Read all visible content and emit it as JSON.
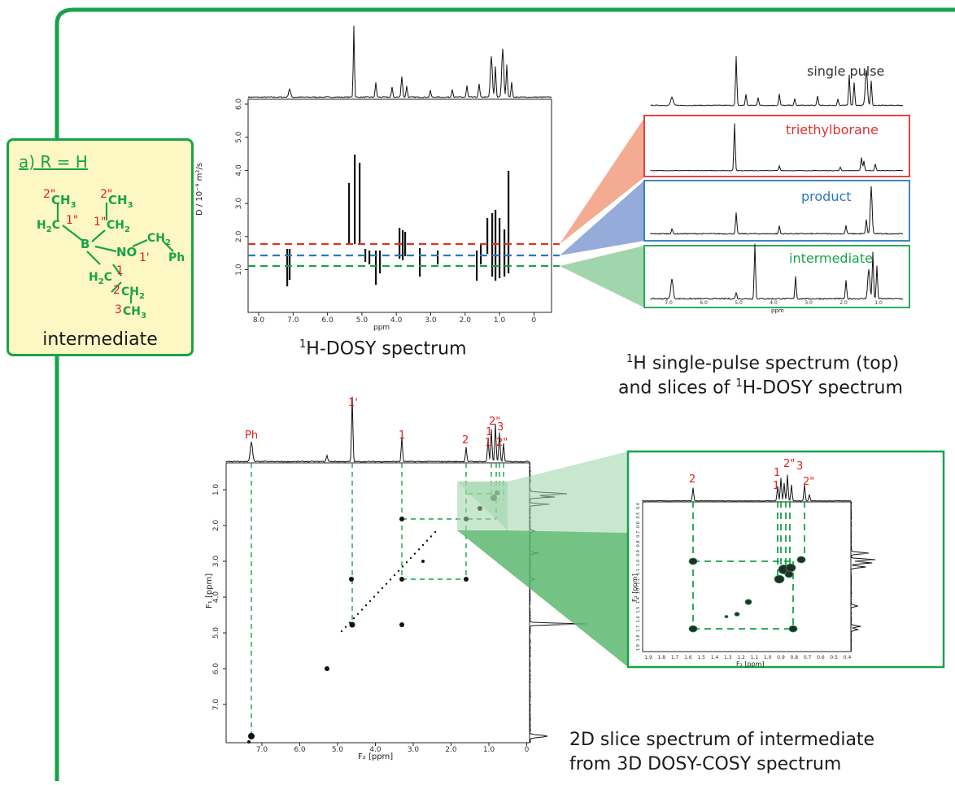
{
  "structure": {
    "title": "a) R = H",
    "footer": "intermediate",
    "atoms": {
      "ch3_top_left": "CH",
      "ch3_top_right": "CH",
      "h2c_left": "H",
      "ch2_right": "CH",
      "b": "B",
      "no": "NO",
      "ch2_benzyl": "CH",
      "ph": "Ph",
      "h2c_lower": "H",
      "ch2_lower": "CH",
      "ch3_lower": "CH"
    },
    "numbers": {
      "n2pp_left": "2\"",
      "n2pp_right": "2\"",
      "n1pp_left": "1\"",
      "n1pp_right": "1\"",
      "n1p": "1'",
      "n1": "1",
      "n2": "2",
      "n3": "3"
    }
  },
  "dosy": {
    "caption_sup": "1",
    "caption_text": "H-DOSY spectrum",
    "y_axis_label": "D / 10⁻⁹ m²/s",
    "y_ticks": [
      "6.0",
      "5.0",
      "4.0",
      "3.0",
      "2.0",
      "1.0"
    ],
    "x_ticks": [
      "8.0",
      "7.0",
      "6.0",
      "5.0",
      "4.0",
      "3.0",
      "2.0",
      "1.0",
      "0"
    ],
    "x_unit": "ppm"
  },
  "slices": {
    "caption_line1_sup": "1",
    "caption_line1": "H single-pulse spectrum (top)",
    "caption_line2_pre": "and slices of ",
    "caption_line2_sup": "1",
    "caption_line2_post": "H-DOSY spectrum",
    "labels": {
      "single_pulse": "single pulse",
      "triethylborane": "triethylborane",
      "product": "product",
      "intermediate": "intermediate"
    },
    "colors": {
      "triethylborane": "#e03030",
      "product": "#2a78c0",
      "intermediate": "#17a34a"
    },
    "x_ticks": [
      "7.0",
      "6.0",
      "5.0",
      "4.0",
      "3.0",
      "2.0",
      "1.0"
    ],
    "x_unit": "ppm"
  },
  "cosy": {
    "caption_line1": "2D slice spectrum of intermediate",
    "caption_line2": "from 3D DOSY-COSY spectrum",
    "peak_labels": [
      "Ph",
      "1'",
      "1",
      "2",
      "2\"",
      "1",
      "3",
      "1",
      "2\""
    ],
    "y_label": "F₁ [ppm]",
    "x_label": "F₂ [ppm]",
    "x_ticks": [
      "7.0",
      "6.0",
      "5.0",
      "4.0",
      "3.0",
      "2.0",
      "1.0",
      "0"
    ],
    "y_ticks": [
      "1.0",
      "2.0",
      "3.0",
      "4.0",
      "5.0",
      "6.0",
      "7.0"
    ]
  },
  "zoom": {
    "peak_labels": [
      "2",
      "1",
      "2\"",
      "3",
      "1",
      "2\""
    ],
    "y_label": "F₁ [ppm]",
    "x_label": "F₂ [ppm]",
    "x_ticks": [
      "1.9",
      "1.8",
      "1.7",
      "1.6",
      "1.5",
      "1.4",
      "1.3",
      "1.2",
      "1.1",
      "1.0",
      "0.9",
      "0.8",
      "0.7",
      "0.6",
      "0.5",
      "0.4"
    ],
    "y_ticks": [
      "0.4",
      "0.5",
      "0.6",
      "0.7",
      "0.8",
      "0.9",
      "1.0",
      "1.1",
      "1.2",
      "1.3",
      "1.4",
      "1.5",
      "1.6",
      "1.7",
      "1.8",
      "1.9"
    ]
  },
  "colors": {
    "frame": "#17a34a",
    "dash_red": "#e03030",
    "dash_blue": "#2a78c0",
    "dash_green": "#17a34a",
    "fan_red": "#f2a78c",
    "fan_blue": "#8fa6d8",
    "fan_green": "#9cd3a8",
    "peak_label": "#e02020"
  }
}
